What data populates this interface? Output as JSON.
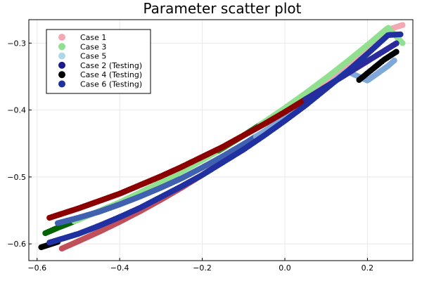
{
  "chart_data": {
    "type": "scatter",
    "title": "Parameter scatter plot",
    "xlabel": "",
    "ylabel": "",
    "xlim": [
      -0.62,
      0.31
    ],
    "ylim": [
      -0.625,
      -0.265
    ],
    "x_ticks": [
      -0.6,
      -0.4,
      -0.2,
      0.0,
      0.2
    ],
    "x_tick_labels": [
      "−0.6",
      "−0.4",
      "−0.2",
      "0.0",
      "0.2"
    ],
    "y_ticks": [
      -0.6,
      -0.5,
      -0.4,
      -0.3
    ],
    "y_tick_labels": [
      "−0.6",
      "−0.5",
      "−0.4",
      "−0.3"
    ],
    "grid": true,
    "legend_position": "top-left",
    "series": [
      {
        "name": "Case 1",
        "color": "#f4a8b4",
        "segments": [
          {
            "x_range": [
              -0.54,
              -0.07
            ],
            "color": "#c0505a"
          },
          {
            "x_range": [
              -0.07,
              0.285
            ],
            "color": "#f4a8b4"
          }
        ],
        "x": [
          -0.54,
          -0.5,
          -0.45,
          -0.4,
          -0.35,
          -0.3,
          -0.25,
          -0.2,
          -0.15,
          -0.1,
          -0.05,
          0.0,
          0.05,
          0.1,
          0.15,
          0.2,
          0.25,
          0.285
        ],
        "y": [
          -0.607,
          -0.596,
          -0.582,
          -0.567,
          -0.551,
          -0.534,
          -0.516,
          -0.497,
          -0.477,
          -0.456,
          -0.434,
          -0.411,
          -0.387,
          -0.362,
          -0.336,
          -0.309,
          -0.28,
          -0.273
        ]
      },
      {
        "name": "Case 3",
        "color": "#90e090",
        "segments": [
          {
            "x_range": [
              -0.58,
              -0.51
            ],
            "color": "#006400"
          },
          {
            "x_range": [
              -0.51,
              -0.16
            ],
            "color": "#90e090"
          },
          {
            "x_range": [
              -0.16,
              -0.06
            ],
            "color": "#2e8b2e"
          },
          {
            "x_range": [
              -0.06,
              0.285
            ],
            "color": "#90e090"
          }
        ],
        "x": [
          -0.58,
          -0.55,
          -0.5,
          -0.45,
          -0.4,
          -0.35,
          -0.3,
          -0.25,
          -0.2,
          -0.15,
          -0.1,
          -0.05,
          0.0,
          0.05,
          0.1,
          0.15,
          0.2,
          0.25,
          0.285
        ],
        "y": [
          -0.584,
          -0.576,
          -0.564,
          -0.551,
          -0.538,
          -0.523,
          -0.508,
          -0.492,
          -0.475,
          -0.457,
          -0.438,
          -0.418,
          -0.397,
          -0.375,
          -0.352,
          -0.328,
          -0.303,
          -0.277,
          -0.3
        ]
      },
      {
        "name": "Case 5",
        "color": "#add8e6",
        "segments": [
          {
            "x_range": [
              -0.55,
              -0.07
            ],
            "color": "#4060b0"
          },
          {
            "x_range": [
              -0.07,
              0.265
            ],
            "color": "#7fa8d8"
          }
        ],
        "x": [
          -0.55,
          -0.5,
          -0.45,
          -0.4,
          -0.35,
          -0.3,
          -0.25,
          -0.2,
          -0.15,
          -0.1,
          -0.05,
          0.0,
          0.05,
          0.1,
          0.15,
          0.2,
          0.25,
          0.265
        ],
        "y": [
          -0.569,
          -0.561,
          -0.552,
          -0.541,
          -0.529,
          -0.516,
          -0.502,
          -0.486,
          -0.469,
          -0.451,
          -0.432,
          -0.411,
          -0.389,
          -0.366,
          -0.342,
          -0.356,
          -0.334,
          -0.326
        ]
      },
      {
        "name": "Case 2 (Testing)",
        "color": "#1a1a8c",
        "segments": [
          {
            "x_range": [
              -0.57,
              0.05
            ],
            "color": "#8b0000"
          },
          {
            "x_range": [
              0.05,
              0.27
            ],
            "color": "#2b2b9c"
          }
        ],
        "x": [
          -0.57,
          -0.5,
          -0.45,
          -0.4,
          -0.35,
          -0.3,
          -0.25,
          -0.2,
          -0.15,
          -0.1,
          -0.05,
          0.0,
          0.05
        ],
        "y": [
          -0.561,
          -0.547,
          -0.536,
          -0.525,
          -0.512,
          -0.499,
          -0.485,
          -0.47,
          -0.455,
          -0.438,
          -0.421,
          -0.403,
          -0.384
        ]
      },
      {
        "name": "Case 4 (Testing)",
        "color": "#000000",
        "segments": [
          {
            "x_range": [
              -0.59,
              -0.55
            ],
            "color": "#000000"
          },
          {
            "x_range": [
              0.18,
              0.27
            ],
            "color": "#000000"
          }
        ],
        "x": [
          -0.59,
          -0.575,
          -0.56,
          -0.55,
          0.18,
          0.2,
          0.22,
          0.24,
          0.26,
          0.27
        ],
        "y": [
          -0.605,
          -0.602,
          -0.599,
          -0.597,
          -0.355,
          -0.345,
          -0.335,
          -0.325,
          -0.317,
          -0.313
        ]
      },
      {
        "name": "Case 6 (Testing)",
        "color": "#2030a0",
        "segments": [
          {
            "x_range": [
              -0.57,
              0.28
            ],
            "color": "#2030a0"
          }
        ],
        "x": [
          -0.57,
          -0.5,
          -0.45,
          -0.4,
          -0.35,
          -0.3,
          -0.25,
          -0.2,
          -0.15,
          -0.1,
          -0.05,
          0.0,
          0.05,
          0.1,
          0.15,
          0.2,
          0.25,
          0.28
        ],
        "y": [
          -0.598,
          -0.585,
          -0.573,
          -0.56,
          -0.546,
          -0.53,
          -0.514,
          -0.497,
          -0.478,
          -0.459,
          -0.438,
          -0.416,
          -0.393,
          -0.368,
          -0.343,
          -0.316,
          -0.288,
          -0.287
        ]
      }
    ]
  }
}
